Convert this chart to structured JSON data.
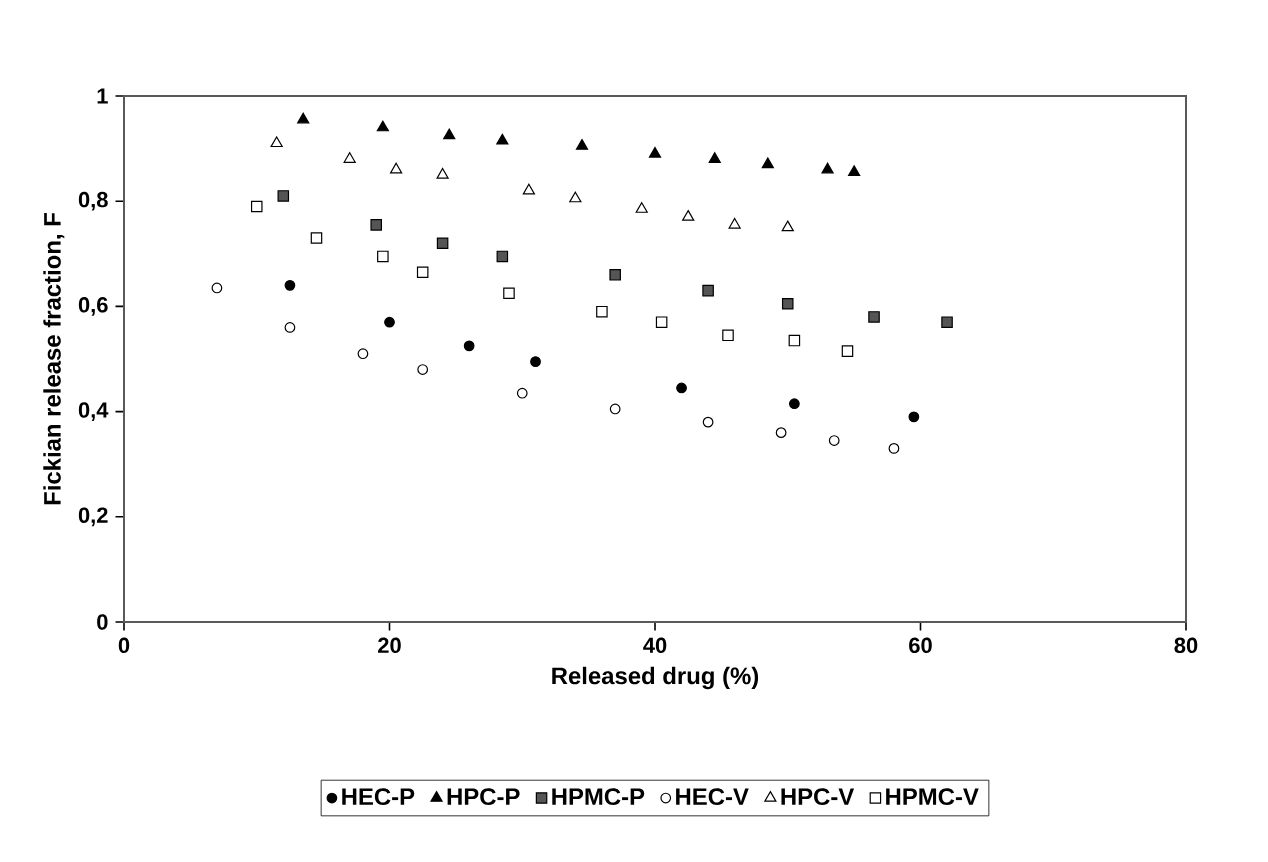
{
  "chart_data": {
    "type": "scatter",
    "xlabel": "Released drug (%)",
    "ylabel": "Fickian release fraction, F",
    "xlim": [
      0,
      80
    ],
    "xticks": [
      0,
      20,
      40,
      60,
      80
    ],
    "ylim": [
      0,
      1
    ],
    "yticks": [
      0,
      {
        "value": 0.2,
        "label": "0,2"
      },
      {
        "value": 0.4,
        "label": "0,4"
      },
      {
        "value": 0.6,
        "label": "0,6"
      },
      {
        "value": 0.8,
        "label": "0,8"
      },
      1
    ],
    "grid": false,
    "legend": "bottom",
    "series": [
      {
        "name": "HEC-P",
        "color": "#000000",
        "marker": "circle",
        "x": [
          12.5,
          20,
          26,
          31,
          42,
          50.5,
          59.5
        ],
        "values": [
          0.64,
          0.57,
          0.525,
          0.495,
          0.445,
          0.415,
          0.39
        ]
      },
      {
        "name": "HPC-P",
        "color": "#000000",
        "marker": "triangle",
        "x": [
          13.5,
          19.5,
          24.5,
          28.5,
          34.5,
          40,
          44.5,
          48.5,
          53,
          55
        ],
        "values": [
          0.955,
          0.94,
          0.925,
          0.915,
          0.905,
          0.89,
          0.88,
          0.87,
          0.86,
          0.855
        ]
      },
      {
        "name": "HPMC-P",
        "color": "#555555",
        "marker": "square",
        "x": [
          12,
          19,
          24,
          28.5,
          37,
          44,
          50,
          56.5,
          62
        ],
        "values": [
          0.81,
          0.755,
          0.72,
          0.695,
          0.66,
          0.63,
          0.605,
          0.58,
          0.57
        ]
      },
      {
        "name": "HEC-V",
        "color": "#ffffff",
        "marker": "circle",
        "x": [
          7,
          12.5,
          18,
          22.5,
          30,
          37,
          44,
          49.5,
          53.5,
          58
        ],
        "values": [
          0.635,
          0.56,
          0.51,
          0.48,
          0.435,
          0.405,
          0.38,
          0.36,
          0.345,
          0.33
        ]
      },
      {
        "name": "HPC-V",
        "color": "#ffffff",
        "marker": "triangle",
        "x": [
          11.5,
          17,
          20.5,
          24,
          30.5,
          34,
          39,
          42.5,
          46,
          50
        ],
        "values": [
          0.91,
          0.88,
          0.86,
          0.85,
          0.82,
          0.805,
          0.785,
          0.77,
          0.755,
          0.75
        ]
      },
      {
        "name": "HPMC-V",
        "color": "#ffffff",
        "marker": "square",
        "x": [
          10,
          14.5,
          19.5,
          22.5,
          29,
          36,
          40.5,
          45.5,
          50.5,
          54.5
        ],
        "values": [
          0.79,
          0.73,
          0.695,
          0.665,
          0.625,
          0.59,
          0.57,
          0.545,
          0.535,
          0.515
        ]
      }
    ]
  }
}
